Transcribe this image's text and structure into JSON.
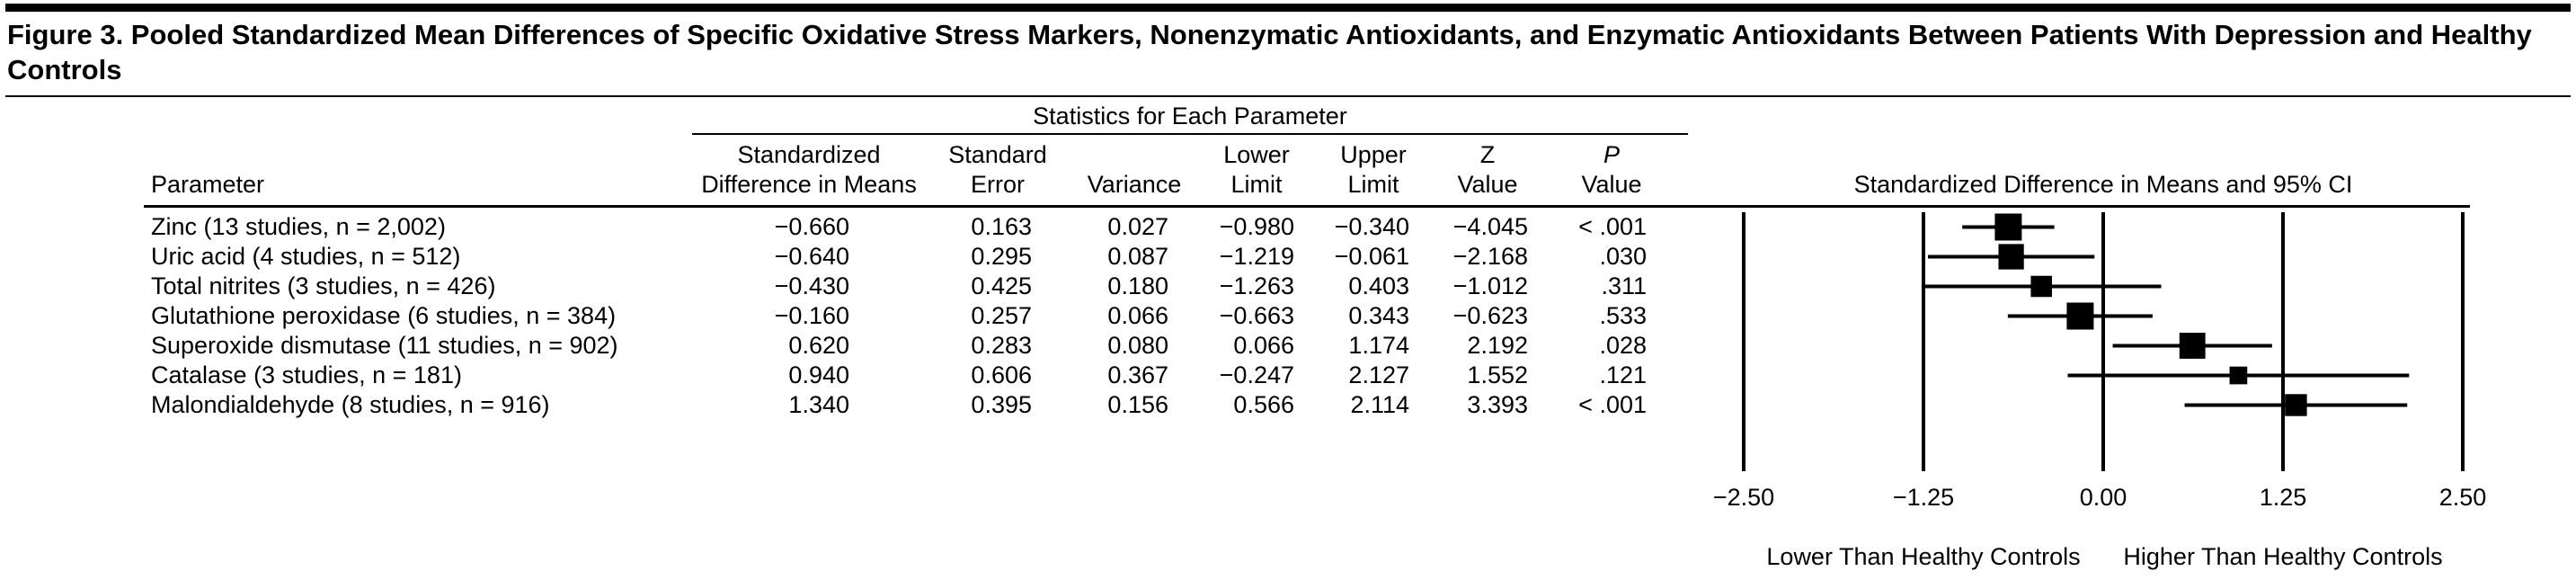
{
  "figure": {
    "title": "Figure 3. Pooled Standardized Mean Differences of Specific Oxidative Stress Markers, Nonenzymatic Antioxidants, and Enzymatic Antioxidants Between Patients With Depression and Healthy Controls"
  },
  "table": {
    "group_header": "Statistics for Each Parameter",
    "columns": {
      "parameter": "Parameter",
      "std_diff": [
        "Standardized",
        "Difference in Means"
      ],
      "std_err": [
        "Standard",
        "Error"
      ],
      "variance": "Variance",
      "lower": [
        "Lower",
        "Limit"
      ],
      "upper": [
        "Upper",
        "Limit"
      ],
      "z": [
        "Z",
        "Value"
      ],
      "p": [
        "P",
        "Value"
      ]
    },
    "rows": [
      {
        "parameter": "Zinc (13 studies, n = 2,002)",
        "std_diff": "−0.660",
        "std_err": "0.163",
        "variance": "0.027",
        "lower": "−0.980",
        "upper": "−0.340",
        "z": "−4.045",
        "p": "< .001"
      },
      {
        "parameter": "Uric acid (4 studies, n = 512)",
        "std_diff": "−0.640",
        "std_err": "0.295",
        "variance": "0.087",
        "lower": "−1.219",
        "upper": "−0.061",
        "z": "−2.168",
        "p": ".030"
      },
      {
        "parameter": "Total nitrites (3 studies, n = 426)",
        "std_diff": "−0.430",
        "std_err": "0.425",
        "variance": "0.180",
        "lower": "−1.263",
        "upper": "0.403",
        "z": "−1.012",
        "p": ".311"
      },
      {
        "parameter": "Glutathione peroxidase (6 studies, n = 384)",
        "std_diff": "−0.160",
        "std_err": "0.257",
        "variance": "0.066",
        "lower": "−0.663",
        "upper": "0.343",
        "z": "−0.623",
        "p": ".533"
      },
      {
        "parameter": "Superoxide dismutase (11 studies, n = 902)",
        "std_diff": "0.620",
        "std_err": "0.283",
        "variance": "0.080",
        "lower": "0.066",
        "upper": "1.174",
        "z": "2.192",
        "p": ".028"
      },
      {
        "parameter": "Catalase (3 studies, n = 181)",
        "std_diff": "0.940",
        "std_err": "0.606",
        "variance": "0.367",
        "lower": "−0.247",
        "upper": "2.127",
        "z": "1.552",
        "p": ".121"
      },
      {
        "parameter": "Malondialdehyde (8 studies, n = 916)",
        "std_diff": "1.340",
        "std_err": "0.395",
        "variance": "0.156",
        "lower": "0.566",
        "upper": "2.114",
        "z": "3.393",
        "p": "< .001"
      }
    ]
  },
  "chart_data": {
    "type": "forest",
    "title": "Standardized Difference in Means and 95% CI",
    "xlabel": "",
    "xlim": [
      -2.5,
      2.5
    ],
    "tick_values": [
      -2.5,
      -1.25,
      0,
      1.25,
      2.5
    ],
    "ticks": [
      "−2.50",
      "−1.25",
      "0.00",
      "1.25",
      "2.50"
    ],
    "left_label": "Lower Than Healthy Controls",
    "right_label": "Higher Than Healthy Controls",
    "marker_color": "#000000",
    "points": [
      {
        "label": "Zinc",
        "mean": -0.66,
        "lower": -0.98,
        "upper": -0.34,
        "se": 0.163
      },
      {
        "label": "Uric acid",
        "mean": -0.64,
        "lower": -1.219,
        "upper": -0.061,
        "se": 0.295
      },
      {
        "label": "Total nitrites",
        "mean": -0.43,
        "lower": -1.263,
        "upper": 0.403,
        "se": 0.425
      },
      {
        "label": "Glutathione peroxidase",
        "mean": -0.16,
        "lower": -0.663,
        "upper": 0.343,
        "se": 0.257
      },
      {
        "label": "Superoxide dismutase",
        "mean": 0.62,
        "lower": 0.066,
        "upper": 1.174,
        "se": 0.283
      },
      {
        "label": "Catalase",
        "mean": 0.94,
        "lower": -0.247,
        "upper": 2.127,
        "se": 0.606
      },
      {
        "label": "Malondialdehyde",
        "mean": 1.34,
        "lower": 0.566,
        "upper": 2.114,
        "se": 0.395
      }
    ]
  }
}
